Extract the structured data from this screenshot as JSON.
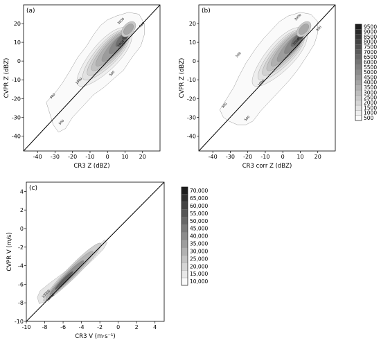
{
  "chart_data": [
    {
      "panel_label": "(a)",
      "type": "heatmap",
      "xlabel": "CR3 Z (dBZ)",
      "ylabel": "CVPR Z (dBZ)",
      "xlim": [
        -48,
        30
      ],
      "ylim": [
        -48,
        30
      ],
      "xticks": [
        -40,
        -30,
        -20,
        -10,
        0,
        10,
        20
      ],
      "yticks": [
        -40,
        -30,
        -20,
        -10,
        0,
        10,
        20
      ],
      "reference_line": "1:1",
      "contour_levels": [
        500,
        1000,
        1500,
        2000,
        2500,
        3000,
        3500,
        4000,
        4500,
        5000,
        5500,
        6000,
        6500,
        7000,
        7500,
        8000,
        8500,
        9000,
        9500
      ],
      "contour_labels": [
        {
          "text": "500",
          "x": -31,
          "y": -19
        },
        {
          "text": "500",
          "x": -26,
          "y": -33
        },
        {
          "text": "1000",
          "x": -16,
          "y": -11
        },
        {
          "text": "500",
          "x": 3,
          "y": -7
        },
        {
          "text": "1000",
          "x": 8,
          "y": 9
        },
        {
          "text": "3000",
          "x": 8,
          "y": 21
        },
        {
          "text": "500",
          "x": 20,
          "y": 19
        }
      ]
    },
    {
      "panel_label": "(b)",
      "type": "heatmap",
      "xlabel": "CR3 corr Z (dBZ)",
      "ylabel": "CVPR Z (dBZ)",
      "xlim": [
        -48,
        30
      ],
      "ylim": [
        -48,
        30
      ],
      "xticks": [
        -40,
        -30,
        -20,
        -10,
        0,
        10,
        20
      ],
      "yticks": [
        -40,
        -30,
        -20,
        -10,
        0,
        10,
        20
      ],
      "reference_line": "1:1",
      "colorbar": {
        "ticks": [
          "9500",
          "9000",
          "8500",
          "8000",
          "7500",
          "7000",
          "6500",
          "6000",
          "5500",
          "5000",
          "4500",
          "4000",
          "3500",
          "3000",
          "2500",
          "2000",
          "1500",
          "1000",
          "500"
        ]
      },
      "contour_labels": [
        {
          "text": "500",
          "x": -33,
          "y": -24
        },
        {
          "text": "500",
          "x": -25,
          "y": 3
        },
        {
          "text": "500",
          "x": -20,
          "y": -31
        },
        {
          "text": "1000",
          "x": -12,
          "y": -12
        },
        {
          "text": "1000",
          "x": 8,
          "y": 10
        },
        {
          "text": "3000",
          "x": 9,
          "y": 23
        },
        {
          "text": "500",
          "x": 21,
          "y": 17
        }
      ]
    },
    {
      "panel_label": "(c)",
      "type": "heatmap",
      "xlabel": "CR3 V (m·s⁻¹)",
      "ylabel": "CVPR V (m/s)",
      "xlim": [
        -10,
        5
      ],
      "ylim": [
        -10,
        5
      ],
      "xticks": [
        -10,
        -8,
        -6,
        -4,
        -2,
        0,
        2,
        4
      ],
      "yticks": [
        -10,
        -8,
        -6,
        -4,
        -2,
        0,
        2,
        4
      ],
      "reference_line": "1:1",
      "colorbar": {
        "ticks": [
          "70,000",
          "65,000",
          "60,000",
          "55,000",
          "50,000",
          "45,000",
          "40,000",
          "35,000",
          "30,000",
          "25,000",
          "20,000",
          "15,000",
          "10,000"
        ]
      },
      "contour_labels": [
        {
          "text": "10000",
          "x": -7.8,
          "y": -7.1
        },
        {
          "text": "10000",
          "x": -7.3,
          "y": -7.5
        }
      ]
    }
  ]
}
